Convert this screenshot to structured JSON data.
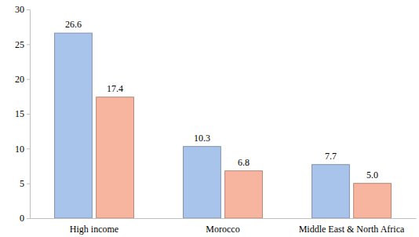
{
  "chart_data": {
    "type": "bar",
    "categories": [
      "High income",
      "Morocco",
      "Middle East & North Africa"
    ],
    "series": [
      {
        "color": "#a9c4eb",
        "values": [
          26.6,
          10.3,
          7.7
        ],
        "value_labels": [
          "26.6",
          "10.3",
          "7.7"
        ]
      },
      {
        "color": "#f7b49f",
        "values": [
          17.4,
          6.8,
          5.0
        ],
        "value_labels": [
          "17.4",
          "6.8",
          "5.0"
        ]
      }
    ],
    "ylim": [
      0,
      30
    ],
    "yticks": [
      0,
      5,
      10,
      15,
      20,
      25,
      30
    ],
    "grid": false,
    "data_labels": true
  }
}
